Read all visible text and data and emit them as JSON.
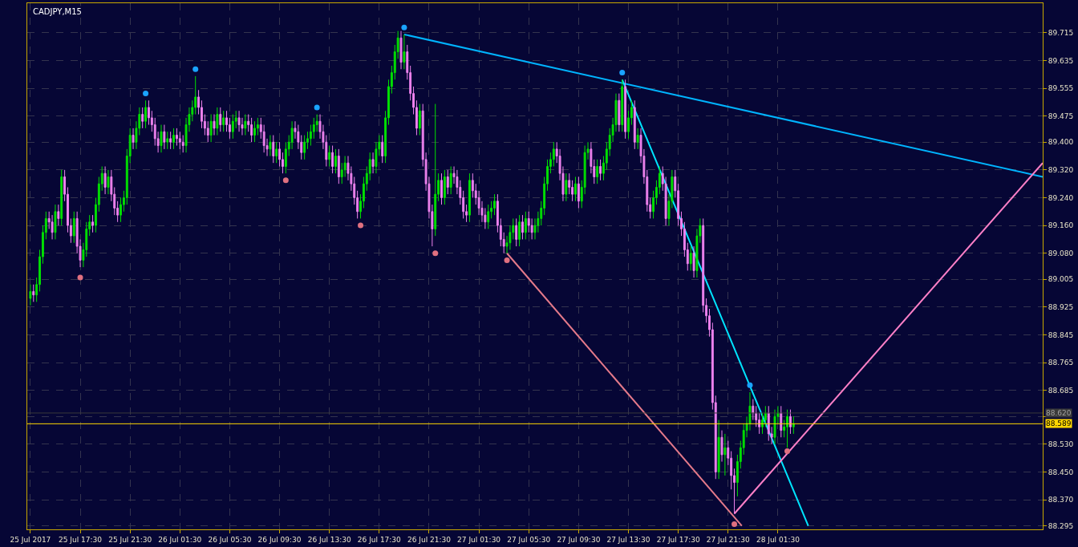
{
  "chart_data": {
    "type": "candlestick",
    "title": "CADJPY,M15",
    "x": [
      "2017-07-25T13:30",
      "2017-07-25T13:45",
      "2017-07-25T14:00",
      "2017-07-25T14:15",
      "2017-07-25T14:30",
      "2017-07-25T14:45",
      "2017-07-25T15:00",
      "2017-07-25T15:15",
      "2017-07-25T15:30",
      "2017-07-25T15:45",
      "2017-07-25T16:00",
      "2017-07-25T16:15",
      "2017-07-25T16:30",
      "2017-07-25T16:45",
      "2017-07-25T17:00",
      "2017-07-25T17:15",
      "2017-07-25T17:30",
      "2017-07-25T17:45",
      "2017-07-25T18:00",
      "2017-07-25T18:15",
      "2017-07-25T18:30",
      "2017-07-25T18:45",
      "2017-07-25T19:00",
      "2017-07-25T19:15",
      "2017-07-25T19:30",
      "2017-07-25T19:45",
      "2017-07-25T20:00",
      "2017-07-25T20:15",
      "2017-07-25T20:30",
      "2017-07-25T20:45",
      "2017-07-25T21:00",
      "2017-07-25T21:15",
      "2017-07-25T21:30",
      "2017-07-25T21:45",
      "2017-07-25T22:00",
      "2017-07-25T22:15",
      "2017-07-25T22:30",
      "2017-07-25T22:45",
      "2017-07-25T23:00",
      "2017-07-25T23:15",
      "2017-07-25T23:30",
      "2017-07-25T23:45",
      "2017-07-26T00:00",
      "2017-07-26T00:15",
      "2017-07-26T00:30",
      "2017-07-26T00:45",
      "2017-07-26T01:00",
      "2017-07-26T01:15",
      "2017-07-26T01:30",
      "2017-07-26T01:45",
      "2017-07-26T02:00",
      "2017-07-26T02:15",
      "2017-07-26T02:30",
      "2017-07-26T02:45",
      "2017-07-26T03:00",
      "2017-07-26T03:15",
      "2017-07-26T03:30",
      "2017-07-26T03:45",
      "2017-07-26T04:00",
      "2017-07-26T04:15",
      "2017-07-26T04:30",
      "2017-07-26T04:45",
      "2017-07-26T05:00",
      "2017-07-26T05:15",
      "2017-07-26T05:30",
      "2017-07-26T05:45",
      "2017-07-26T06:00",
      "2017-07-26T06:15",
      "2017-07-26T06:30",
      "2017-07-26T06:45",
      "2017-07-26T07:00",
      "2017-07-26T07:15",
      "2017-07-26T07:30",
      "2017-07-26T07:45",
      "2017-07-26T08:00",
      "2017-07-26T08:15",
      "2017-07-26T08:30",
      "2017-07-26T08:45",
      "2017-07-26T09:00",
      "2017-07-26T09:15",
      "2017-07-26T09:30",
      "2017-07-26T09:45",
      "2017-07-26T10:00",
      "2017-07-26T10:15",
      "2017-07-26T10:30",
      "2017-07-26T10:45",
      "2017-07-26T11:00",
      "2017-07-26T11:15",
      "2017-07-26T11:30",
      "2017-07-26T11:45",
      "2017-07-26T12:00",
      "2017-07-26T12:15",
      "2017-07-26T12:30",
      "2017-07-26T12:45",
      "2017-07-26T13:00",
      "2017-07-26T13:15",
      "2017-07-26T13:30",
      "2017-07-26T13:45",
      "2017-07-26T14:00",
      "2017-07-26T14:15",
      "2017-07-26T14:30",
      "2017-07-26T14:45",
      "2017-07-26T15:00",
      "2017-07-26T15:15",
      "2017-07-26T15:30",
      "2017-07-26T15:45",
      "2017-07-26T16:00",
      "2017-07-26T16:15",
      "2017-07-26T16:30",
      "2017-07-26T16:45",
      "2017-07-26T17:00",
      "2017-07-26T17:15",
      "2017-07-26T17:30",
      "2017-07-26T17:45",
      "2017-07-26T18:00",
      "2017-07-26T18:15",
      "2017-07-26T18:30",
      "2017-07-26T18:45",
      "2017-07-26T19:00",
      "2017-07-26T19:15",
      "2017-07-26T19:30",
      "2017-07-26T19:45",
      "2017-07-26T20:00",
      "2017-07-26T20:15",
      "2017-07-26T20:30",
      "2017-07-26T20:45",
      "2017-07-26T21:00",
      "2017-07-26T21:15",
      "2017-07-26T21:30",
      "2017-07-26T21:45",
      "2017-07-26T22:00",
      "2017-07-26T22:15",
      "2017-07-26T22:30",
      "2017-07-26T22:45",
      "2017-07-26T23:00",
      "2017-07-26T23:15",
      "2017-07-26T23:30",
      "2017-07-26T23:45",
      "2017-07-27T00:00",
      "2017-07-27T00:15",
      "2017-07-27T00:30",
      "2017-07-27T00:45",
      "2017-07-27T01:00",
      "2017-07-27T01:15",
      "2017-07-27T01:30",
      "2017-07-27T01:45",
      "2017-07-27T02:00",
      "2017-07-27T02:15",
      "2017-07-27T02:30",
      "2017-07-27T02:45",
      "2017-07-27T03:00",
      "2017-07-27T03:15",
      "2017-07-27T03:30",
      "2017-07-27T03:45",
      "2017-07-27T04:00",
      "2017-07-27T04:15",
      "2017-07-27T04:30",
      "2017-07-27T04:45",
      "2017-07-27T05:00",
      "2017-07-27T05:15",
      "2017-07-27T05:30",
      "2017-07-27T05:45",
      "2017-07-27T06:00",
      "2017-07-27T06:15",
      "2017-07-27T06:30",
      "2017-07-27T06:45",
      "2017-07-27T07:00",
      "2017-07-27T07:15",
      "2017-07-27T07:30",
      "2017-07-27T07:45",
      "2017-07-27T08:00",
      "2017-07-27T08:15",
      "2017-07-27T08:30",
      "2017-07-27T08:45",
      "2017-07-27T09:00",
      "2017-07-27T09:15",
      "2017-07-27T09:30",
      "2017-07-27T09:45",
      "2017-07-27T10:00",
      "2017-07-27T10:15",
      "2017-07-27T10:30",
      "2017-07-27T10:45",
      "2017-07-27T11:00",
      "2017-07-27T11:15",
      "2017-07-27T11:30",
      "2017-07-27T11:45",
      "2017-07-27T12:00",
      "2017-07-27T12:15",
      "2017-07-27T12:30",
      "2017-07-27T12:45",
      "2017-07-27T13:00",
      "2017-07-27T13:15",
      "2017-07-27T13:30",
      "2017-07-27T13:45",
      "2017-07-27T14:00",
      "2017-07-27T14:15",
      "2017-07-27T14:30",
      "2017-07-27T14:45",
      "2017-07-27T15:00",
      "2017-07-27T15:15",
      "2017-07-27T15:30",
      "2017-07-27T15:45",
      "2017-07-27T16:00",
      "2017-07-27T16:15",
      "2017-07-27T16:30",
      "2017-07-27T16:45",
      "2017-07-27T17:00",
      "2017-07-27T17:15",
      "2017-07-27T17:30",
      "2017-07-27T17:45",
      "2017-07-27T18:00",
      "2017-07-27T18:15",
      "2017-07-27T18:30",
      "2017-07-27T18:45",
      "2017-07-27T19:00",
      "2017-07-27T19:15",
      "2017-07-27T19:30",
      "2017-07-27T19:45",
      "2017-07-27T20:00",
      "2017-07-27T20:15",
      "2017-07-27T20:30",
      "2017-07-27T20:45",
      "2017-07-27T21:00",
      "2017-07-27T21:15",
      "2017-07-27T21:30",
      "2017-07-27T21:45",
      "2017-07-27T22:00",
      "2017-07-27T22:15",
      "2017-07-27T22:30",
      "2017-07-27T22:45",
      "2017-07-27T23:00",
      "2017-07-27T23:15",
      "2017-07-27T23:30",
      "2017-07-27T23:45",
      "2017-07-28T00:00",
      "2017-07-28T00:15",
      "2017-07-28T00:30",
      "2017-07-28T00:45",
      "2017-07-28T01:00",
      "2017-07-28T01:15",
      "2017-07-28T01:30",
      "2017-07-28T01:45",
      "2017-07-28T02:00",
      "2017-07-28T02:15",
      "2017-07-28T02:30",
      "2017-07-28T02:45"
    ],
    "ohlc": [
      [
        88.95,
        88.99,
        88.93,
        88.97
      ],
      [
        88.97,
        88.99,
        88.94,
        88.96
      ],
      [
        88.96,
        89.01,
        88.94,
        88.99
      ],
      [
        88.99,
        89.09,
        88.97,
        89.07
      ],
      [
        89.07,
        89.16,
        89.05,
        89.14
      ],
      [
        89.14,
        89.2,
        89.12,
        89.18
      ],
      [
        89.18,
        89.2,
        89.15,
        89.17
      ],
      [
        89.17,
        89.19,
        89.12,
        89.14
      ],
      [
        89.14,
        89.22,
        89.12,
        89.2
      ],
      [
        89.2,
        89.22,
        89.16,
        89.18
      ],
      [
        89.18,
        89.32,
        89.16,
        89.3
      ],
      [
        89.3,
        89.32,
        89.23,
        89.25
      ],
      [
        89.25,
        89.27,
        89.14,
        89.16
      ],
      [
        89.16,
        89.18,
        89.11,
        89.13
      ],
      [
        89.13,
        89.2,
        89.11,
        89.18
      ],
      [
        89.18,
        89.2,
        89.08,
        89.1
      ],
      [
        89.1,
        89.12,
        89.04,
        89.06
      ],
      [
        89.06,
        89.11,
        89.04,
        89.09
      ],
      [
        89.09,
        89.17,
        89.07,
        89.15
      ],
      [
        89.15,
        89.19,
        89.13,
        89.17
      ],
      [
        89.17,
        89.19,
        89.14,
        89.16
      ],
      [
        89.16,
        89.24,
        89.14,
        89.22
      ],
      [
        89.22,
        89.3,
        89.2,
        89.28
      ],
      [
        89.28,
        89.33,
        89.26,
        89.31
      ],
      [
        89.31,
        89.33,
        89.25,
        89.27
      ],
      [
        89.27,
        89.32,
        89.25,
        89.3
      ],
      [
        89.3,
        89.32,
        89.23,
        89.25
      ],
      [
        89.25,
        89.27,
        89.19,
        89.21
      ],
      [
        89.21,
        89.23,
        89.17,
        89.19
      ],
      [
        89.19,
        89.24,
        89.17,
        89.22
      ],
      [
        89.22,
        89.26,
        89.2,
        89.24
      ],
      [
        89.24,
        89.38,
        89.22,
        89.36
      ],
      [
        89.36,
        89.44,
        89.34,
        89.42
      ],
      [
        89.42,
        89.44,
        89.38,
        89.4
      ],
      [
        89.4,
        89.46,
        89.38,
        89.44
      ],
      [
        89.44,
        89.5,
        89.42,
        89.48
      ],
      [
        89.48,
        89.5,
        89.44,
        89.46
      ],
      [
        89.46,
        89.52,
        89.44,
        89.5
      ],
      [
        89.5,
        89.52,
        89.45,
        89.47
      ],
      [
        89.47,
        89.49,
        89.43,
        89.45
      ],
      [
        89.45,
        89.47,
        89.39,
        89.41
      ],
      [
        89.41,
        89.43,
        89.37,
        89.39
      ],
      [
        89.39,
        89.45,
        89.37,
        89.43
      ],
      [
        89.43,
        89.45,
        89.38,
        89.4
      ],
      [
        89.4,
        89.43,
        89.38,
        89.41
      ],
      [
        89.41,
        89.43,
        89.38,
        89.4
      ],
      [
        89.4,
        89.44,
        89.38,
        89.42
      ],
      [
        89.42,
        89.44,
        89.39,
        89.41
      ],
      [
        89.41,
        89.43,
        89.38,
        89.4
      ],
      [
        89.4,
        89.42,
        89.37,
        89.39
      ],
      [
        89.39,
        89.47,
        89.37,
        89.45
      ],
      [
        89.45,
        89.5,
        89.43,
        89.48
      ],
      [
        89.48,
        89.52,
        89.46,
        89.5
      ],
      [
        89.5,
        89.59,
        89.48,
        89.53
      ],
      [
        89.53,
        89.55,
        89.48,
        89.5
      ],
      [
        89.5,
        89.52,
        89.44,
        89.46
      ],
      [
        89.46,
        89.48,
        89.42,
        89.44
      ],
      [
        89.44,
        89.46,
        89.4,
        89.42
      ],
      [
        89.42,
        89.48,
        89.4,
        89.46
      ],
      [
        89.46,
        89.48,
        89.42,
        89.44
      ],
      [
        89.44,
        89.5,
        89.42,
        89.48
      ],
      [
        89.48,
        89.5,
        89.43,
        89.45
      ],
      [
        89.45,
        89.49,
        89.43,
        89.47
      ],
      [
        89.47,
        89.49,
        89.43,
        89.45
      ],
      [
        89.45,
        89.47,
        89.41,
        89.43
      ],
      [
        89.43,
        89.48,
        89.41,
        89.46
      ],
      [
        89.46,
        89.49,
        89.44,
        89.47
      ],
      [
        89.47,
        89.49,
        89.43,
        89.45
      ],
      [
        89.45,
        89.47,
        89.42,
        89.44
      ],
      [
        89.44,
        89.48,
        89.42,
        89.46
      ],
      [
        89.46,
        89.48,
        89.43,
        89.45
      ],
      [
        89.45,
        89.47,
        89.4,
        89.42
      ],
      [
        89.42,
        89.46,
        89.4,
        89.44
      ],
      [
        89.44,
        89.47,
        89.42,
        89.45
      ],
      [
        89.45,
        89.47,
        89.41,
        89.43
      ],
      [
        89.43,
        89.45,
        89.37,
        89.39
      ],
      [
        89.39,
        89.41,
        89.36,
        89.38
      ],
      [
        89.38,
        89.42,
        89.36,
        89.4
      ],
      [
        89.4,
        89.42,
        89.34,
        89.36
      ],
      [
        89.36,
        89.4,
        89.34,
        89.38
      ],
      [
        89.38,
        89.4,
        89.33,
        89.35
      ],
      [
        89.35,
        89.37,
        89.31,
        89.33
      ],
      [
        89.33,
        89.4,
        89.31,
        89.38
      ],
      [
        89.38,
        89.42,
        89.36,
        89.4
      ],
      [
        89.4,
        89.46,
        89.38,
        89.44
      ],
      [
        89.44,
        89.46,
        89.41,
        89.43
      ],
      [
        89.43,
        89.45,
        89.38,
        89.4
      ],
      [
        89.4,
        89.42,
        89.35,
        89.37
      ],
      [
        89.37,
        89.42,
        89.35,
        89.4
      ],
      [
        89.4,
        89.43,
        89.38,
        89.41
      ],
      [
        89.41,
        89.45,
        89.39,
        89.43
      ],
      [
        89.43,
        89.47,
        89.41,
        89.45
      ],
      [
        89.45,
        89.48,
        89.43,
        89.46
      ],
      [
        89.46,
        89.48,
        89.41,
        89.43
      ],
      [
        89.43,
        89.45,
        89.38,
        89.4
      ],
      [
        89.4,
        89.42,
        89.33,
        89.35
      ],
      [
        89.35,
        89.39,
        89.33,
        89.37
      ],
      [
        89.37,
        89.39,
        89.31,
        89.33
      ],
      [
        89.33,
        89.38,
        89.31,
        89.36
      ],
      [
        89.36,
        89.38,
        89.28,
        89.3
      ],
      [
        89.3,
        89.34,
        89.28,
        89.32
      ],
      [
        89.32,
        89.36,
        89.3,
        89.34
      ],
      [
        89.34,
        89.36,
        89.29,
        89.31
      ],
      [
        89.31,
        89.33,
        89.26,
        89.28
      ],
      [
        89.28,
        89.3,
        89.22,
        89.24
      ],
      [
        89.24,
        89.26,
        89.18,
        89.2
      ],
      [
        89.2,
        89.25,
        89.18,
        89.23
      ],
      [
        89.23,
        89.3,
        89.21,
        89.28
      ],
      [
        89.28,
        89.33,
        89.26,
        89.31
      ],
      [
        89.31,
        89.37,
        89.29,
        89.35
      ],
      [
        89.35,
        89.37,
        89.31,
        89.33
      ],
      [
        89.33,
        89.4,
        89.31,
        89.38
      ],
      [
        89.38,
        89.42,
        89.36,
        89.4
      ],
      [
        89.4,
        89.42,
        89.34,
        89.36
      ],
      [
        89.36,
        89.49,
        89.34,
        89.47
      ],
      [
        89.47,
        89.58,
        89.45,
        89.56
      ],
      [
        89.56,
        89.62,
        89.54,
        89.6
      ],
      [
        89.6,
        89.68,
        89.58,
        89.66
      ],
      [
        89.66,
        89.72,
        89.64,
        89.7
      ],
      [
        89.7,
        89.72,
        89.61,
        89.63
      ],
      [
        89.63,
        89.71,
        89.61,
        89.66
      ],
      [
        89.66,
        89.68,
        89.58,
        89.6
      ],
      [
        89.6,
        89.62,
        89.52,
        89.54
      ],
      [
        89.54,
        89.56,
        89.48,
        89.5
      ],
      [
        89.5,
        89.52,
        89.42,
        89.44
      ],
      [
        89.44,
        89.51,
        89.42,
        89.49
      ],
      [
        89.49,
        89.51,
        89.33,
        89.35
      ],
      [
        89.35,
        89.37,
        89.26,
        89.28
      ],
      [
        89.28,
        89.3,
        89.18,
        89.2
      ],
      [
        89.2,
        89.22,
        89.1,
        89.15
      ],
      [
        89.15,
        89.51,
        89.13,
        89.25
      ],
      [
        89.25,
        89.31,
        89.23,
        89.29
      ],
      [
        89.29,
        89.31,
        89.22,
        89.24
      ],
      [
        89.24,
        89.32,
        89.22,
        89.3
      ],
      [
        89.3,
        89.32,
        89.25,
        89.27
      ],
      [
        89.27,
        89.33,
        89.25,
        89.31
      ],
      [
        89.31,
        89.33,
        89.28,
        89.3
      ],
      [
        89.3,
        89.32,
        89.25,
        89.27
      ],
      [
        89.27,
        89.29,
        89.22,
        89.24
      ],
      [
        89.24,
        89.26,
        89.18,
        89.2
      ],
      [
        89.2,
        89.22,
        89.17,
        89.19
      ],
      [
        89.19,
        89.31,
        89.17,
        89.29
      ],
      [
        89.29,
        89.31,
        89.24,
        89.26
      ],
      [
        89.26,
        89.28,
        89.22,
        89.24
      ],
      [
        89.24,
        89.26,
        89.19,
        89.21
      ],
      [
        89.21,
        89.23,
        89.17,
        89.19
      ],
      [
        89.19,
        89.21,
        89.15,
        89.17
      ],
      [
        89.17,
        89.22,
        89.15,
        89.2
      ],
      [
        89.2,
        89.23,
        89.18,
        89.21
      ],
      [
        89.21,
        89.25,
        89.19,
        89.23
      ],
      [
        89.23,
        89.25,
        89.14,
        89.16
      ],
      [
        89.16,
        89.18,
        89.1,
        89.12
      ],
      [
        89.12,
        89.14,
        89.08,
        89.1
      ],
      [
        89.1,
        89.13,
        89.08,
        89.11
      ],
      [
        89.11,
        89.16,
        89.09,
        89.14
      ],
      [
        89.14,
        89.18,
        89.12,
        89.16
      ],
      [
        89.16,
        89.18,
        89.1,
        89.12
      ],
      [
        89.12,
        89.19,
        89.1,
        89.17
      ],
      [
        89.17,
        89.19,
        89.12,
        89.14
      ],
      [
        89.14,
        89.2,
        89.12,
        89.18
      ],
      [
        89.18,
        89.2,
        89.14,
        89.16
      ],
      [
        89.16,
        89.18,
        89.12,
        89.14
      ],
      [
        89.14,
        89.18,
        89.12,
        89.16
      ],
      [
        89.16,
        89.2,
        89.14,
        89.18
      ],
      [
        89.18,
        89.23,
        89.16,
        89.21
      ],
      [
        89.21,
        89.3,
        89.19,
        89.28
      ],
      [
        89.28,
        89.35,
        89.26,
        89.33
      ],
      [
        89.33,
        89.37,
        89.31,
        89.35
      ],
      [
        89.35,
        89.4,
        89.33,
        89.38
      ],
      [
        89.38,
        89.4,
        89.34,
        89.36
      ],
      [
        89.36,
        89.38,
        89.29,
        89.31
      ],
      [
        89.31,
        89.33,
        89.23,
        89.25
      ],
      [
        89.25,
        89.31,
        89.23,
        89.29
      ],
      [
        89.29,
        89.31,
        89.25,
        89.27
      ],
      [
        89.27,
        89.29,
        89.23,
        89.25
      ],
      [
        89.25,
        89.3,
        89.23,
        89.28
      ],
      [
        89.28,
        89.3,
        89.21,
        89.23
      ],
      [
        89.23,
        89.29,
        89.21,
        89.27
      ],
      [
        89.27,
        89.39,
        89.25,
        89.37
      ],
      [
        89.37,
        89.4,
        89.35,
        89.38
      ],
      [
        89.38,
        89.4,
        89.31,
        89.33
      ],
      [
        89.33,
        89.35,
        89.28,
        89.3
      ],
      [
        89.3,
        89.35,
        89.28,
        89.33
      ],
      [
        89.33,
        89.35,
        89.29,
        89.31
      ],
      [
        89.31,
        89.36,
        89.29,
        89.34
      ],
      [
        89.34,
        89.4,
        89.32,
        89.38
      ],
      [
        89.38,
        89.44,
        89.36,
        89.42
      ],
      [
        89.42,
        89.47,
        89.4,
        89.45
      ],
      [
        89.45,
        89.54,
        89.43,
        89.52
      ],
      [
        89.52,
        89.54,
        89.43,
        89.45
      ],
      [
        89.45,
        89.58,
        89.43,
        89.56
      ],
      [
        89.56,
        89.58,
        89.41,
        89.43
      ],
      [
        89.43,
        89.49,
        89.41,
        89.47
      ],
      [
        89.47,
        89.52,
        89.45,
        89.5
      ],
      [
        89.5,
        89.52,
        89.38,
        89.4
      ],
      [
        89.4,
        89.44,
        89.38,
        89.42
      ],
      [
        89.42,
        89.44,
        89.34,
        89.36
      ],
      [
        89.36,
        89.38,
        89.28,
        89.3
      ],
      [
        89.3,
        89.32,
        89.2,
        89.22
      ],
      [
        89.22,
        89.24,
        89.18,
        89.2
      ],
      [
        89.2,
        89.26,
        89.18,
        89.24
      ],
      [
        89.24,
        89.29,
        89.22,
        89.27
      ],
      [
        89.27,
        89.33,
        89.25,
        89.31
      ],
      [
        89.31,
        89.33,
        89.26,
        89.28
      ],
      [
        89.28,
        89.3,
        89.16,
        89.18
      ],
      [
        89.18,
        89.25,
        89.16,
        89.23
      ],
      [
        89.23,
        89.32,
        89.21,
        89.3
      ],
      [
        89.3,
        89.32,
        89.24,
        89.26
      ],
      [
        89.26,
        89.28,
        89.16,
        89.18
      ],
      [
        89.18,
        89.2,
        89.13,
        89.15
      ],
      [
        89.15,
        89.17,
        89.07,
        89.09
      ],
      [
        89.09,
        89.11,
        89.03,
        89.05
      ],
      [
        89.05,
        89.1,
        89.03,
        89.08
      ],
      [
        89.08,
        89.1,
        89.01,
        89.03
      ],
      [
        89.03,
        89.15,
        89.01,
        89.13
      ],
      [
        89.13,
        89.18,
        89.11,
        89.16
      ],
      [
        89.16,
        89.18,
        88.91,
        88.93
      ],
      [
        88.93,
        88.95,
        88.88,
        88.9
      ],
      [
        88.9,
        88.92,
        88.84,
        88.86
      ],
      [
        88.86,
        88.88,
        88.63,
        88.65
      ],
      [
        88.65,
        88.67,
        88.43,
        88.45
      ],
      [
        88.45,
        88.6,
        88.43,
        88.55
      ],
      [
        88.55,
        88.57,
        88.48,
        88.5
      ],
      [
        88.5,
        88.56,
        88.44,
        88.52
      ],
      [
        88.52,
        88.54,
        88.47,
        88.49
      ],
      [
        88.49,
        88.51,
        88.4,
        88.44
      ],
      [
        88.44,
        88.46,
        88.33,
        88.42
      ],
      [
        88.42,
        88.5,
        88.38,
        88.48
      ],
      [
        88.48,
        88.54,
        88.46,
        88.52
      ],
      [
        88.52,
        88.59,
        88.5,
        88.57
      ],
      [
        88.57,
        88.61,
        88.55,
        88.59
      ],
      [
        88.59,
        88.68,
        88.57,
        88.64
      ],
      [
        88.64,
        88.66,
        88.6,
        88.62
      ],
      [
        88.62,
        88.64,
        88.58,
        88.6
      ],
      [
        88.6,
        88.62,
        88.56,
        88.58
      ],
      [
        88.58,
        88.62,
        88.56,
        88.6
      ],
      [
        88.6,
        88.64,
        88.58,
        88.62
      ],
      [
        88.62,
        88.64,
        88.54,
        88.56
      ],
      [
        88.56,
        88.58,
        88.53,
        88.55
      ],
      [
        88.55,
        88.63,
        88.53,
        88.61
      ],
      [
        88.61,
        88.64,
        88.59,
        88.62
      ],
      [
        88.62,
        88.64,
        88.55,
        88.57
      ],
      [
        88.57,
        88.6,
        88.55,
        88.58
      ],
      [
        88.58,
        88.63,
        88.52,
        88.61
      ],
      [
        88.61,
        88.63,
        88.56,
        88.58
      ],
      [
        88.58,
        88.61,
        88.56,
        88.589
      ]
    ],
    "xlim": [
      "2017-07-25T13:15",
      "2017-07-28T22:45"
    ],
    "xticks": [
      {
        "value": "2017-07-25T13:30",
        "label": "25 Jul 2017"
      },
      {
        "value": "2017-07-25T17:30",
        "label": "25 Jul 17:30"
      },
      {
        "value": "2017-07-25T21:30",
        "label": "25 Jul 21:30"
      },
      {
        "value": "2017-07-26T01:30",
        "label": "26 Jul 01:30"
      },
      {
        "value": "2017-07-26T05:30",
        "label": "26 Jul 05:30"
      },
      {
        "value": "2017-07-26T09:30",
        "label": "26 Jul 09:30"
      },
      {
        "value": "2017-07-26T13:30",
        "label": "26 Jul 13:30"
      },
      {
        "value": "2017-07-26T17:30",
        "label": "26 Jul 17:30"
      },
      {
        "value": "2017-07-26T21:30",
        "label": "26 Jul 21:30"
      },
      {
        "value": "2017-07-27T01:30",
        "label": "27 Jul 01:30"
      },
      {
        "value": "2017-07-27T05:30",
        "label": "27 Jul 05:30"
      },
      {
        "value": "2017-07-27T09:30",
        "label": "27 Jul 09:30"
      },
      {
        "value": "2017-07-27T13:30",
        "label": "27 Jul 13:30"
      },
      {
        "value": "2017-07-27T17:30",
        "label": "27 Jul 17:30"
      },
      {
        "value": "2017-07-27T21:30",
        "label": "27 Jul 21:30"
      },
      {
        "value": "2017-07-28T01:30",
        "label": "28 Jul 01:30"
      }
    ],
    "ylim": [
      88.285,
      89.8
    ],
    "yticks": [
      89.715,
      89.635,
      89.555,
      89.475,
      {
        "value": 89.4,
        "label": "89.400"
      },
      {
        "value": 89.32,
        "label": "89.320"
      },
      {
        "value": 89.24,
        "label": "89.240"
      },
      {
        "value": 89.16,
        "label": "89.160"
      },
      {
        "value": 89.08,
        "label": "89.080"
      },
      89.005,
      88.925,
      88.845,
      88.765,
      88.685,
      {
        "value": 88.61,
        "label": null
      },
      {
        "value": 88.53,
        "label": "88.530"
      },
      {
        "value": 88.45,
        "label": "88.450"
      },
      {
        "value": 88.37,
        "label": "88.370"
      },
      88.295
    ],
    "grid": true,
    "ref_lines": [
      {
        "axis": "y",
        "value": 88.62,
        "label": "88.620",
        "color": "#3a3a3a"
      },
      {
        "axis": "y",
        "value": 88.589,
        "label": "88.589",
        "color": "#ffd700"
      }
    ],
    "series": [
      {
        "type": "line",
        "color": "#00b4ff",
        "marker": "none",
        "x": [
          "2017-07-26T19:30",
          "2017-07-28T22:45"
        ],
        "values": [
          89.71,
          89.3
        ]
      },
      {
        "type": "line",
        "color": "#00e5ff",
        "marker": "none",
        "x": [
          "2017-07-27T13:00",
          "2017-07-28T03:56"
        ],
        "values": [
          89.58,
          88.295
        ]
      },
      {
        "type": "line",
        "color": "#e57a8a",
        "marker": "none",
        "x": [
          "2017-07-27T03:45",
          "2017-07-27T22:36"
        ],
        "values": [
          89.08,
          88.295
        ]
      },
      {
        "type": "line",
        "color": "#ff80c8",
        "marker": "none",
        "x": [
          "2017-07-27T22:00",
          "2017-07-28T22:45"
        ],
        "values": [
          88.33,
          89.34
        ]
      },
      {
        "type": "scatter",
        "color": "#1aa3ff",
        "marker": "circle",
        "x": [
          "2017-07-25T22:45",
          "2017-07-26T02:45",
          "2017-07-26T12:30",
          "2017-07-26T19:30",
          "2017-07-27T13:00",
          "2017-07-27T23:15"
        ],
        "values": [
          89.54,
          89.61,
          89.5,
          89.73,
          89.6,
          88.7
        ]
      },
      {
        "type": "scatter",
        "color": "#e07080",
        "marker": "circle",
        "x": [
          "2017-07-25T17:30",
          "2017-07-26T10:00",
          "2017-07-26T16:00",
          "2017-07-26T22:00",
          "2017-07-27T03:45",
          "2017-07-27T22:00",
          "2017-07-28T02:15"
        ],
        "values": [
          89.01,
          89.29,
          89.16,
          89.08,
          89.06,
          88.3,
          88.51
        ]
      }
    ]
  }
}
